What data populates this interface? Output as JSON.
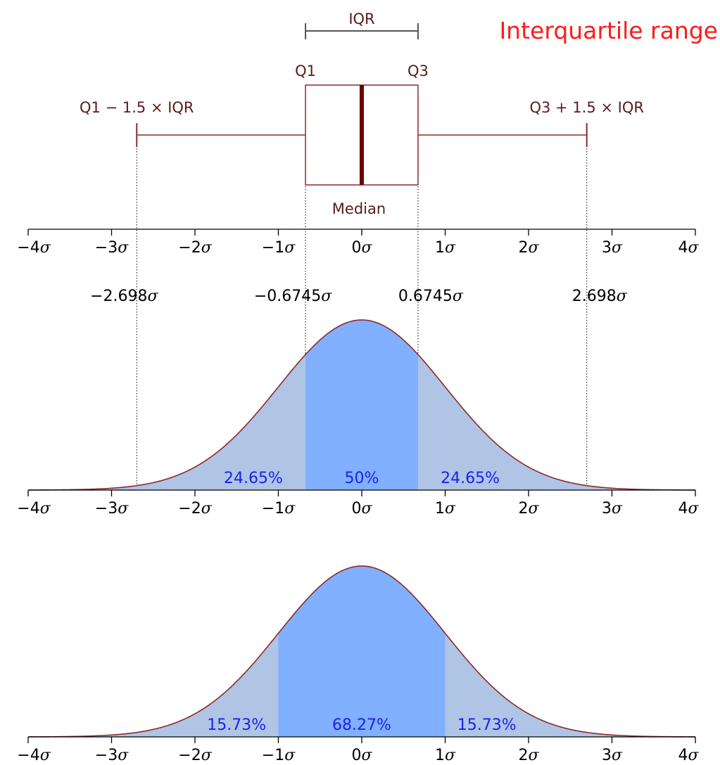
{
  "title": "Interquartile range",
  "chart_data": [
    {
      "type": "box",
      "panel": "boxplot",
      "q1": -0.6745,
      "median": 0,
      "q3": 0.6745,
      "whisker_low": -2.698,
      "whisker_high": 2.698,
      "labels": {
        "iqr": "IQR",
        "q1": "Q1",
        "q3": "Q3",
        "lower_fence": "Q1 − 1.5 × IQR",
        "upper_fence": "Q3 + 1.5 × IQR",
        "median": "Median"
      },
      "xlim": [
        -4,
        4
      ],
      "x_ticks": [
        -4,
        -3,
        -2,
        -1,
        0,
        1,
        2,
        3,
        4
      ],
      "x_tick_labels": [
        "−4",
        "−3",
        "−2",
        "−1",
        "0",
        "1",
        "2",
        "3",
        "4"
      ],
      "tick_unit": "σ",
      "annotations": [
        {
          "x": -2.698,
          "text": "−2.698σ"
        },
        {
          "x": -0.6745,
          "text": "−0.6745σ"
        },
        {
          "x": 0.6745,
          "text": "0.6745σ"
        },
        {
          "x": 2.698,
          "text": "2.698σ"
        }
      ]
    },
    {
      "type": "area",
      "panel": "normal-iqr",
      "distribution": "normal",
      "mean": 0,
      "sd": 1,
      "regions": [
        {
          "from": -4,
          "to": -0.6745,
          "percent": "24.65%",
          "color": "#b0c4e6",
          "label_x": -1.3
        },
        {
          "from": -0.6745,
          "to": 0.6745,
          "percent": "50%",
          "color": "#80b0ff",
          "label_x": 0
        },
        {
          "from": 0.6745,
          "to": 4,
          "percent": "24.65%",
          "color": "#b0c4e6",
          "label_x": 1.3
        }
      ],
      "xlim": [
        -4,
        4
      ],
      "x_ticks": [
        -4,
        -3,
        -2,
        -1,
        0,
        1,
        2,
        3,
        4
      ],
      "x_tick_labels": [
        "−4",
        "−3",
        "−2",
        "−1",
        "0",
        "1",
        "2",
        "3",
        "4"
      ],
      "tick_unit": "σ"
    },
    {
      "type": "area",
      "panel": "normal-sigma",
      "distribution": "normal",
      "mean": 0,
      "sd": 1,
      "regions": [
        {
          "from": -4,
          "to": -1,
          "percent": "15.73%",
          "color": "#b0c4e6",
          "label_x": -1.5
        },
        {
          "from": -1,
          "to": 1,
          "percent": "68.27%",
          "color": "#80b0ff",
          "label_x": 0
        },
        {
          "from": 1,
          "to": 4,
          "percent": "15.73%",
          "color": "#b0c4e6",
          "label_x": 1.5
        }
      ],
      "xlim": [
        -4,
        4
      ],
      "x_ticks": [
        -4,
        -3,
        -2,
        -1,
        0,
        1,
        2,
        3,
        4
      ],
      "x_tick_labels": [
        "−4",
        "−3",
        "−2",
        "−1",
        "0",
        "1",
        "2",
        "3",
        "4"
      ],
      "tick_unit": "σ"
    }
  ],
  "colors": {
    "box_stroke": "#8b2a2a",
    "median": "#6a0000",
    "curve": "#8b2a2a",
    "tails": "#b0c4e6",
    "center": "#80b0ff",
    "percent_text": "#1a22ee",
    "title": "#ff1a1a"
  }
}
